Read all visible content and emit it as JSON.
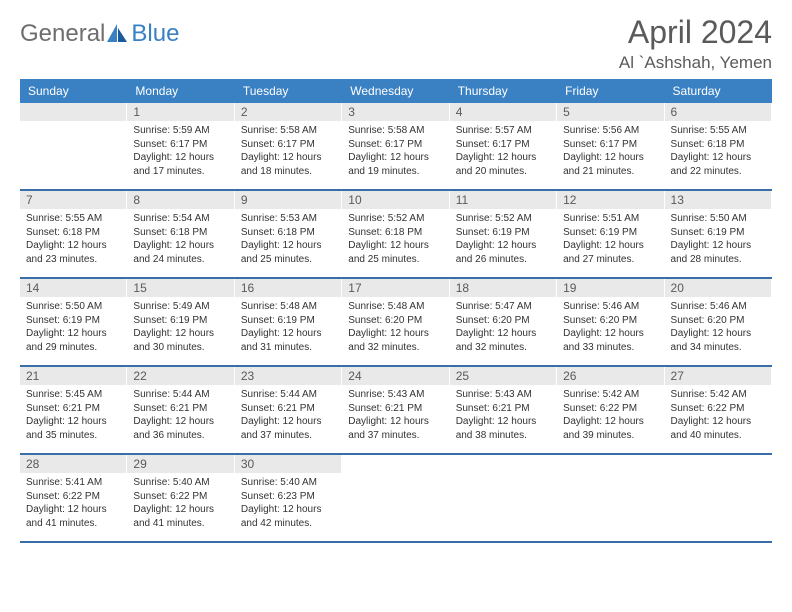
{
  "logo": {
    "text1": "General",
    "text2": "Blue"
  },
  "title": "April 2024",
  "location": "Al `Ashshah, Yemen",
  "colors": {
    "header_bg": "#3a81c4",
    "header_text": "#ffffff",
    "row_border": "#3a6ea8",
    "daynum_bg": "#e9e9e9",
    "text": "#333333",
    "title_text": "#5a5a5a",
    "logo_gray": "#6e6e6e",
    "logo_blue": "#3a81c4"
  },
  "weekdays": [
    "Sunday",
    "Monday",
    "Tuesday",
    "Wednesday",
    "Thursday",
    "Friday",
    "Saturday"
  ],
  "weeks": [
    [
      null,
      {
        "n": "1",
        "sunrise": "5:59 AM",
        "sunset": "6:17 PM",
        "dlh": 12,
        "dlm": 17
      },
      {
        "n": "2",
        "sunrise": "5:58 AM",
        "sunset": "6:17 PM",
        "dlh": 12,
        "dlm": 18
      },
      {
        "n": "3",
        "sunrise": "5:58 AM",
        "sunset": "6:17 PM",
        "dlh": 12,
        "dlm": 19
      },
      {
        "n": "4",
        "sunrise": "5:57 AM",
        "sunset": "6:17 PM",
        "dlh": 12,
        "dlm": 20
      },
      {
        "n": "5",
        "sunrise": "5:56 AM",
        "sunset": "6:17 PM",
        "dlh": 12,
        "dlm": 21
      },
      {
        "n": "6",
        "sunrise": "5:55 AM",
        "sunset": "6:18 PM",
        "dlh": 12,
        "dlm": 22
      }
    ],
    [
      {
        "n": "7",
        "sunrise": "5:55 AM",
        "sunset": "6:18 PM",
        "dlh": 12,
        "dlm": 23
      },
      {
        "n": "8",
        "sunrise": "5:54 AM",
        "sunset": "6:18 PM",
        "dlh": 12,
        "dlm": 24
      },
      {
        "n": "9",
        "sunrise": "5:53 AM",
        "sunset": "6:18 PM",
        "dlh": 12,
        "dlm": 25
      },
      {
        "n": "10",
        "sunrise": "5:52 AM",
        "sunset": "6:18 PM",
        "dlh": 12,
        "dlm": 25
      },
      {
        "n": "11",
        "sunrise": "5:52 AM",
        "sunset": "6:19 PM",
        "dlh": 12,
        "dlm": 26
      },
      {
        "n": "12",
        "sunrise": "5:51 AM",
        "sunset": "6:19 PM",
        "dlh": 12,
        "dlm": 27
      },
      {
        "n": "13",
        "sunrise": "5:50 AM",
        "sunset": "6:19 PM",
        "dlh": 12,
        "dlm": 28
      }
    ],
    [
      {
        "n": "14",
        "sunrise": "5:50 AM",
        "sunset": "6:19 PM",
        "dlh": 12,
        "dlm": 29
      },
      {
        "n": "15",
        "sunrise": "5:49 AM",
        "sunset": "6:19 PM",
        "dlh": 12,
        "dlm": 30
      },
      {
        "n": "16",
        "sunrise": "5:48 AM",
        "sunset": "6:19 PM",
        "dlh": 12,
        "dlm": 31
      },
      {
        "n": "17",
        "sunrise": "5:48 AM",
        "sunset": "6:20 PM",
        "dlh": 12,
        "dlm": 32
      },
      {
        "n": "18",
        "sunrise": "5:47 AM",
        "sunset": "6:20 PM",
        "dlh": 12,
        "dlm": 32
      },
      {
        "n": "19",
        "sunrise": "5:46 AM",
        "sunset": "6:20 PM",
        "dlh": 12,
        "dlm": 33
      },
      {
        "n": "20",
        "sunrise": "5:46 AM",
        "sunset": "6:20 PM",
        "dlh": 12,
        "dlm": 34
      }
    ],
    [
      {
        "n": "21",
        "sunrise": "5:45 AM",
        "sunset": "6:21 PM",
        "dlh": 12,
        "dlm": 35
      },
      {
        "n": "22",
        "sunrise": "5:44 AM",
        "sunset": "6:21 PM",
        "dlh": 12,
        "dlm": 36
      },
      {
        "n": "23",
        "sunrise": "5:44 AM",
        "sunset": "6:21 PM",
        "dlh": 12,
        "dlm": 37
      },
      {
        "n": "24",
        "sunrise": "5:43 AM",
        "sunset": "6:21 PM",
        "dlh": 12,
        "dlm": 37
      },
      {
        "n": "25",
        "sunrise": "5:43 AM",
        "sunset": "6:21 PM",
        "dlh": 12,
        "dlm": 38
      },
      {
        "n": "26",
        "sunrise": "5:42 AM",
        "sunset": "6:22 PM",
        "dlh": 12,
        "dlm": 39
      },
      {
        "n": "27",
        "sunrise": "5:42 AM",
        "sunset": "6:22 PM",
        "dlh": 12,
        "dlm": 40
      }
    ],
    [
      {
        "n": "28",
        "sunrise": "5:41 AM",
        "sunset": "6:22 PM",
        "dlh": 12,
        "dlm": 41
      },
      {
        "n": "29",
        "sunrise": "5:40 AM",
        "sunset": "6:22 PM",
        "dlh": 12,
        "dlm": 41
      },
      {
        "n": "30",
        "sunrise": "5:40 AM",
        "sunset": "6:23 PM",
        "dlh": 12,
        "dlm": 42
      },
      null,
      null,
      null,
      null
    ]
  ],
  "labels": {
    "sunrise": "Sunrise:",
    "sunset": "Sunset:",
    "daylight_prefix": "Daylight:",
    "hours_word": "hours",
    "and_word": "and",
    "minutes_word": "minutes."
  },
  "fonts": {
    "title_size": 32,
    "location_size": 17,
    "weekday_size": 12,
    "daynum_size": 12,
    "content_size": 10
  }
}
